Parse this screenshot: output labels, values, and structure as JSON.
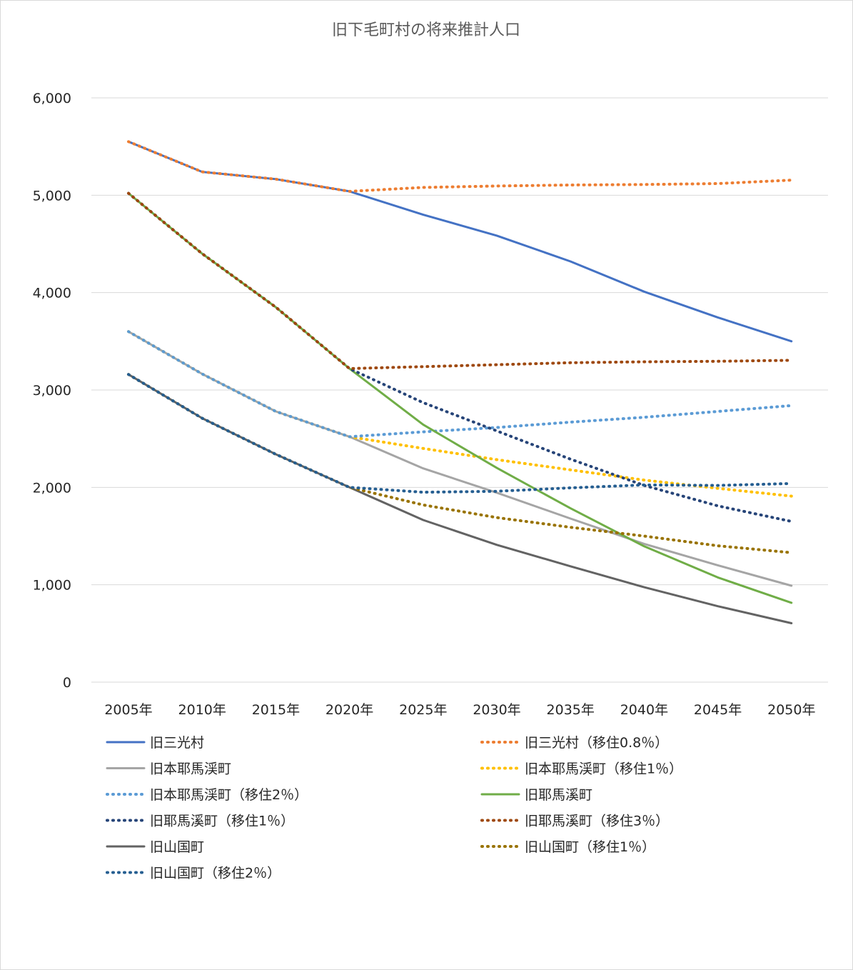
{
  "chart_data": {
    "type": "line",
    "title": "旧下毛町村の将来推計人口",
    "xlabel": "",
    "ylabel": "",
    "categories": [
      "2005年",
      "2010年",
      "2015年",
      "2020年",
      "2025年",
      "2030年",
      "2035年",
      "2040年",
      "2045年",
      "2050年"
    ],
    "ylim": [
      0,
      6000
    ],
    "yticks": [
      0,
      1000,
      2000,
      3000,
      4000,
      5000,
      6000
    ],
    "ytick_labels": [
      "0",
      "1,000",
      "2,000",
      "3,000",
      "4,000",
      "5,000",
      "6,000"
    ],
    "grid": true,
    "legend_position": "bottom",
    "series": [
      {
        "name": "旧三光村",
        "color": "#4472C4",
        "dash": "solid",
        "values": [
          5550,
          5240,
          5165,
          5040,
          4800,
          4585,
          4320,
          4010,
          3745,
          3500
        ]
      },
      {
        "name": "旧三光村（移住0.8％）",
        "color": "#ED7D31",
        "dash": "dotted",
        "values": [
          5550,
          5240,
          5165,
          5040,
          5080,
          5095,
          5105,
          5110,
          5120,
          5155
        ]
      },
      {
        "name": "旧本耶馬渓町",
        "color": "#A5A5A5",
        "dash": "solid",
        "values": [
          3600,
          3165,
          2780,
          2520,
          2195,
          1945,
          1680,
          1420,
          1200,
          990
        ]
      },
      {
        "name": "旧本耶馬渓町（移住1％）",
        "color": "#FFC000",
        "dash": "dotted",
        "values": [
          3600,
          3165,
          2780,
          2520,
          2400,
          2285,
          2180,
          2075,
          1990,
          1910
        ]
      },
      {
        "name": "旧本耶馬渓町（移住2％）",
        "color": "#5B9BD5",
        "dash": "dotted",
        "values": [
          3600,
          3165,
          2780,
          2520,
          2570,
          2615,
          2670,
          2720,
          2780,
          2840
        ]
      },
      {
        "name": "旧耶馬溪町",
        "color": "#70AD47",
        "dash": "solid",
        "values": [
          5020,
          4400,
          3850,
          3220,
          2645,
          2200,
          1785,
          1395,
          1075,
          815
        ]
      },
      {
        "name": "旧耶馬溪町（移住1％）",
        "color": "#264478",
        "dash": "dotted",
        "values": [
          5020,
          4400,
          3850,
          3220,
          2870,
          2580,
          2290,
          2020,
          1810,
          1650
        ]
      },
      {
        "name": "旧耶馬溪町（移住3％）",
        "color": "#9E480E",
        "dash": "dotted",
        "values": [
          5020,
          4400,
          3850,
          3220,
          3240,
          3260,
          3280,
          3290,
          3295,
          3305
        ]
      },
      {
        "name": "旧山国町",
        "color": "#636363",
        "dash": "solid",
        "values": [
          3160,
          2710,
          2340,
          2000,
          1665,
          1410,
          1190,
          975,
          780,
          605
        ]
      },
      {
        "name": "旧山国町（移住1％）",
        "color": "#997300",
        "dash": "dotted",
        "values": [
          3160,
          2710,
          2340,
          2000,
          1820,
          1690,
          1590,
          1500,
          1400,
          1330
        ]
      },
      {
        "name": "旧山国町（移住2％）",
        "color": "#255E91",
        "dash": "dotted",
        "values": [
          3160,
          2710,
          2340,
          2000,
          1950,
          1960,
          1995,
          2025,
          2020,
          2040
        ]
      }
    ]
  }
}
